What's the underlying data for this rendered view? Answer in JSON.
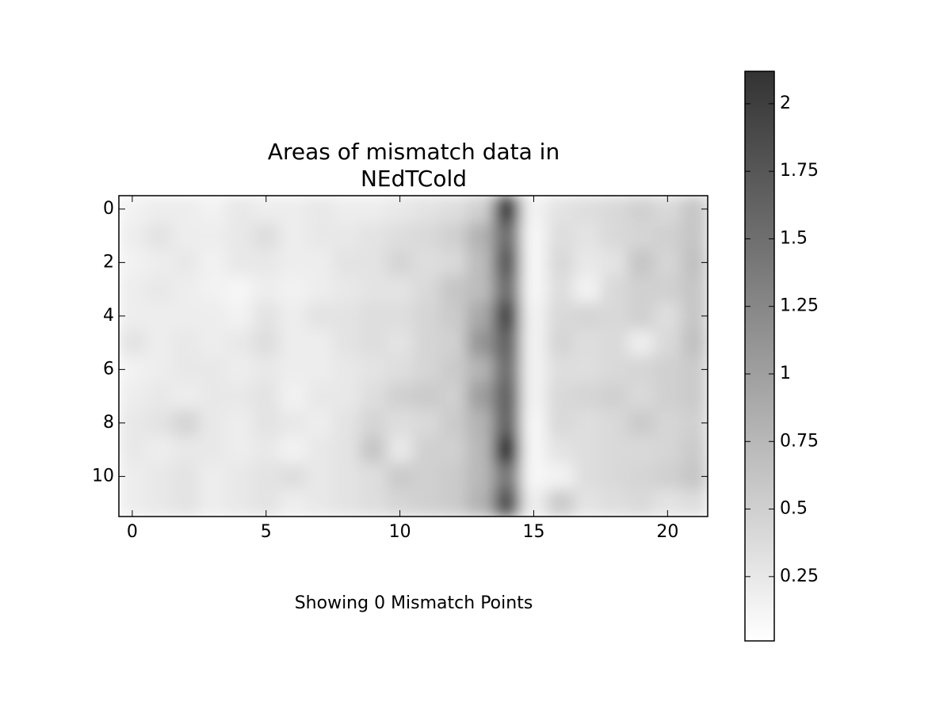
{
  "chart_data": {
    "type": "heatmap",
    "title": [
      "Areas of mismatch data in",
      "NEdTCold"
    ],
    "xlabel": "Showing 0 Mismatch Points",
    "xlim": [
      -0.5,
      21.5
    ],
    "xticks": [
      0,
      5,
      10,
      15,
      20
    ],
    "ylim": [
      -0.5,
      11.5
    ],
    "yticks": [
      0,
      2,
      4,
      6,
      8,
      10
    ],
    "colormap": [
      "#ffffff",
      "#333333"
    ],
    "clim": [
      0.012,
      2.12
    ],
    "colorbar_ticks": [
      0.25,
      0.5,
      0.75,
      1,
      1.25,
      1.5,
      1.75,
      2
    ],
    "z": [
      [
        0.15,
        0.2,
        0.2,
        0.15,
        0.25,
        0.2,
        0.2,
        0.25,
        0.2,
        0.2,
        0.25,
        0.3,
        0.35,
        0.5,
        2.0,
        0.15,
        0.3,
        0.35,
        0.4,
        0.5,
        0.4,
        0.6
      ],
      [
        0.2,
        0.3,
        0.2,
        0.2,
        0.25,
        0.35,
        0.2,
        0.25,
        0.25,
        0.3,
        0.35,
        0.4,
        0.5,
        0.8,
        1.5,
        0.1,
        0.35,
        0.3,
        0.4,
        0.45,
        0.5,
        0.6
      ],
      [
        0.15,
        0.2,
        0.25,
        0.15,
        0.25,
        0.25,
        0.2,
        0.2,
        0.3,
        0.3,
        0.45,
        0.35,
        0.4,
        0.7,
        1.7,
        0.1,
        0.4,
        0.25,
        0.3,
        0.6,
        0.45,
        0.65
      ],
      [
        0.2,
        0.25,
        0.2,
        0.15,
        0.1,
        0.2,
        0.15,
        0.2,
        0.25,
        0.3,
        0.3,
        0.4,
        0.6,
        0.7,
        1.5,
        0.1,
        0.35,
        0.15,
        0.4,
        0.5,
        0.5,
        0.6
      ],
      [
        0.2,
        0.2,
        0.2,
        0.2,
        0.15,
        0.3,
        0.2,
        0.3,
        0.3,
        0.35,
        0.35,
        0.45,
        0.55,
        0.9,
        1.9,
        0.15,
        0.4,
        0.45,
        0.4,
        0.5,
        0.35,
        0.6
      ],
      [
        0.3,
        0.2,
        0.25,
        0.2,
        0.25,
        0.35,
        0.2,
        0.2,
        0.3,
        0.35,
        0.3,
        0.45,
        0.5,
        1.1,
        1.6,
        0.15,
        0.45,
        0.35,
        0.4,
        0.2,
        0.4,
        0.65
      ],
      [
        0.15,
        0.2,
        0.25,
        0.25,
        0.2,
        0.25,
        0.2,
        0.2,
        0.25,
        0.3,
        0.35,
        0.45,
        0.55,
        0.8,
        1.5,
        0.15,
        0.35,
        0.35,
        0.4,
        0.45,
        0.5,
        0.55
      ],
      [
        0.2,
        0.25,
        0.2,
        0.25,
        0.25,
        0.3,
        0.15,
        0.25,
        0.25,
        0.35,
        0.5,
        0.55,
        0.5,
        1.0,
        1.6,
        0.15,
        0.4,
        0.45,
        0.5,
        0.4,
        0.5,
        0.55
      ],
      [
        0.25,
        0.3,
        0.45,
        0.25,
        0.2,
        0.3,
        0.25,
        0.2,
        0.3,
        0.45,
        0.35,
        0.4,
        0.55,
        0.8,
        1.6,
        0.1,
        0.4,
        0.35,
        0.4,
        0.55,
        0.45,
        0.5
      ],
      [
        0.25,
        0.2,
        0.25,
        0.25,
        0.2,
        0.25,
        0.15,
        0.25,
        0.3,
        0.6,
        0.25,
        0.5,
        0.5,
        0.75,
        2.1,
        0.1,
        0.3,
        0.35,
        0.4,
        0.4,
        0.45,
        0.55
      ],
      [
        0.2,
        0.25,
        0.3,
        0.2,
        0.25,
        0.3,
        0.35,
        0.25,
        0.3,
        0.35,
        0.55,
        0.5,
        0.55,
        0.75,
        1.4,
        0.1,
        0.15,
        0.35,
        0.4,
        0.45,
        0.5,
        0.6
      ],
      [
        0.2,
        0.25,
        0.3,
        0.2,
        0.25,
        0.3,
        0.2,
        0.25,
        0.3,
        0.35,
        0.45,
        0.5,
        0.55,
        0.8,
        1.8,
        0.2,
        0.55,
        0.3,
        0.35,
        0.4,
        0.3,
        0.35
      ]
    ]
  }
}
